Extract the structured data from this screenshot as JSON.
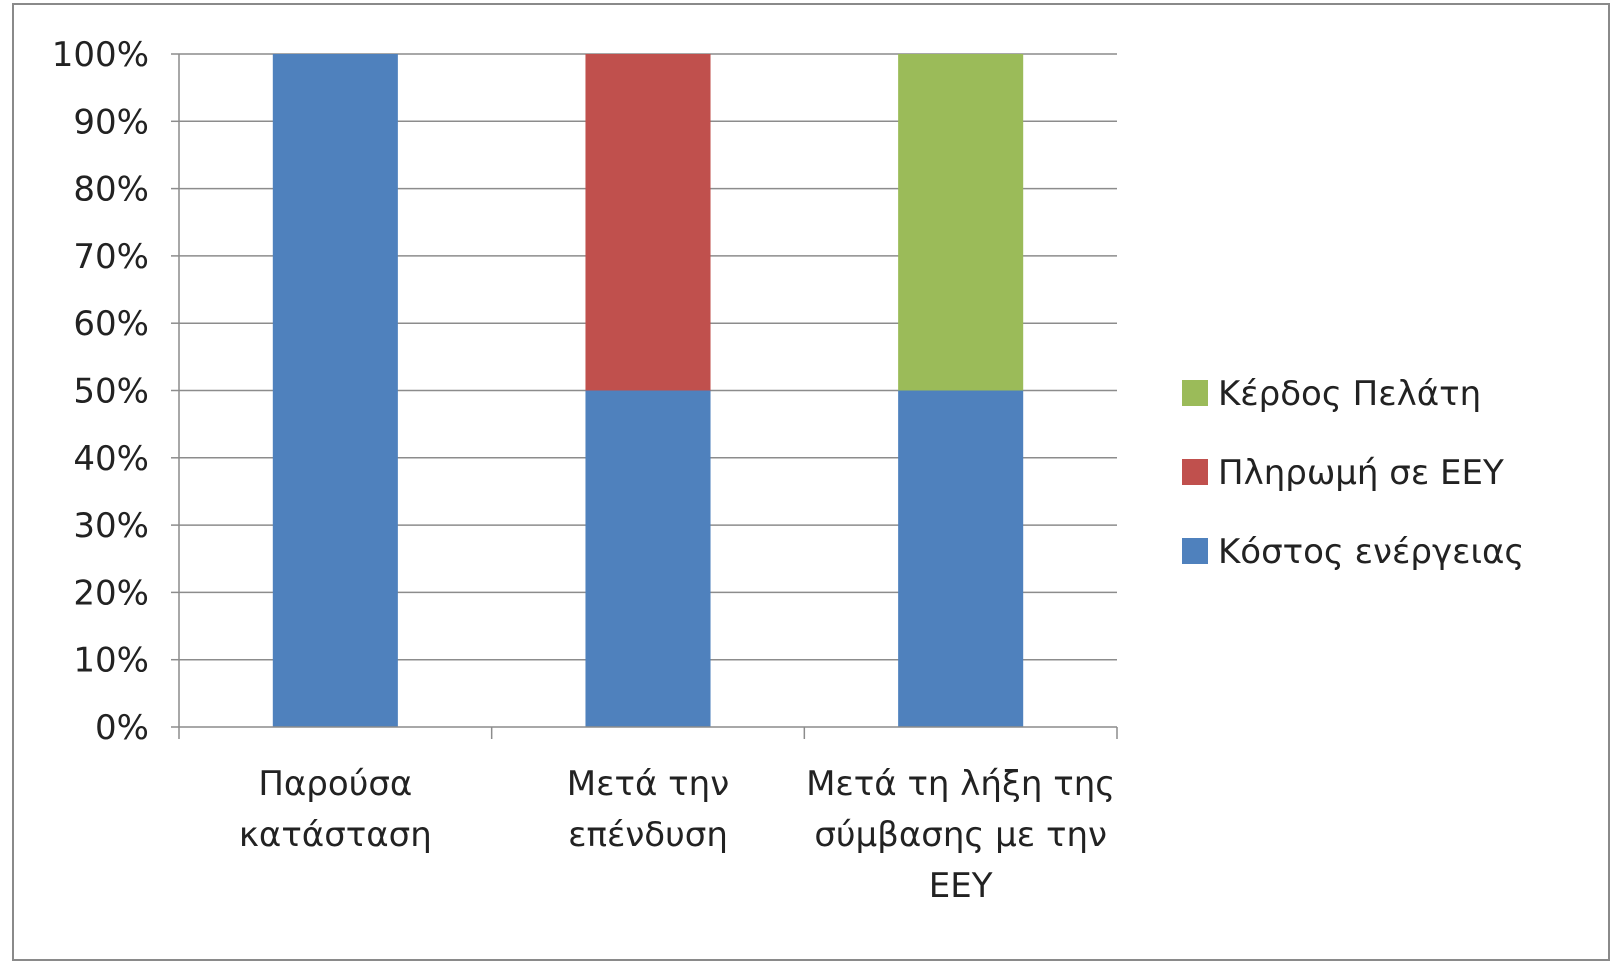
{
  "chart_data": {
    "type": "bar",
    "stacked": true,
    "percent_stacked": true,
    "title": "",
    "xlabel": "",
    "ylabel": "",
    "ylim": [
      0,
      100
    ],
    "y_ticks": [
      "0%",
      "10%",
      "20%",
      "30%",
      "40%",
      "50%",
      "60%",
      "70%",
      "80%",
      "90%",
      "100%"
    ],
    "grid": true,
    "legend_position": "right",
    "categories": [
      [
        "Παρούσα",
        "κατάσταση"
      ],
      [
        "Μετά την",
        "επένδυση"
      ],
      [
        "Μετά τη λήξη της",
        "σύμβασης με την",
        "ΕΕΥ"
      ]
    ],
    "series": [
      {
        "name": "Κόστος ενέργειας",
        "color": "#4f81bd",
        "values": [
          100,
          50,
          50
        ]
      },
      {
        "name": "Πληρωμή σε ΕΕΥ",
        "color": "#c0504d",
        "values": [
          0,
          50,
          0
        ]
      },
      {
        "name": "Κέρδος Πελάτη",
        "color": "#9bbb59",
        "values": [
          0,
          0,
          50
        ]
      }
    ]
  }
}
